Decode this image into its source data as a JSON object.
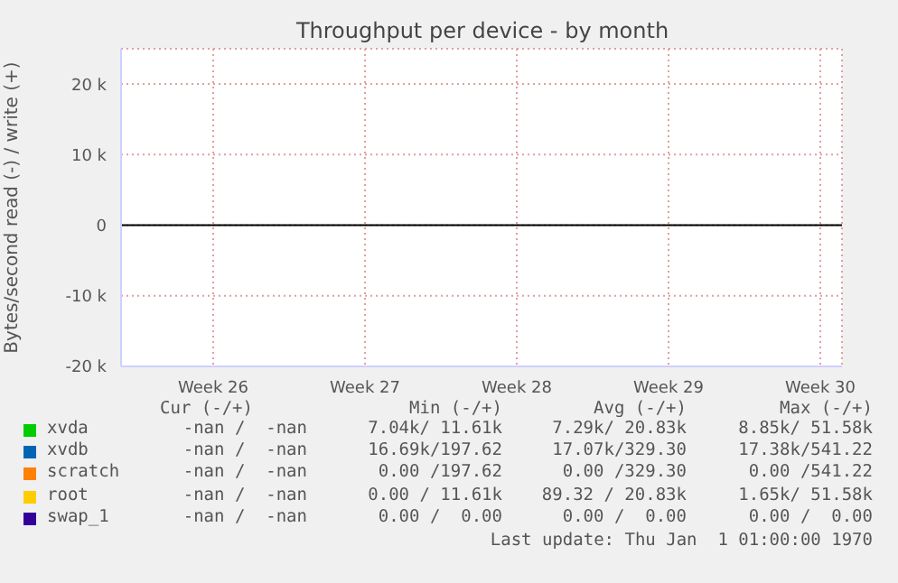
{
  "chart_data": {
    "type": "line",
    "title": "Throughput per device - by month",
    "ylabel": "Bytes/second read (-) / write (+)",
    "categories": [
      "Week 26",
      "Week 27",
      "Week 28",
      "Week 29",
      "Week 30"
    ],
    "ylim": [
      -20000,
      25000
    ],
    "yticks": [
      {
        "value": -20000,
        "label": "-20 k"
      },
      {
        "value": -10000,
        "label": "-10 k"
      },
      0,
      {
        "value": 10000,
        "label": "10 k"
      },
      {
        "value": 20000,
        "label": "20 k"
      }
    ],
    "grid": true,
    "legend": "bottom",
    "ref_lines": [
      {
        "axis": "y",
        "value": 0,
        "color": "#000000"
      }
    ],
    "series": [
      {
        "name": "xvda",
        "color": "#00cc00",
        "values": [
          null,
          null,
          null,
          null,
          null
        ]
      },
      {
        "name": "xvdb",
        "color": "#0066b3",
        "values": [
          null,
          null,
          null,
          null,
          null
        ]
      },
      {
        "name": "scratch",
        "color": "#ff8000",
        "values": [
          null,
          null,
          null,
          null,
          null
        ]
      },
      {
        "name": "root",
        "color": "#ffcc00",
        "values": [
          null,
          null,
          null,
          null,
          null
        ]
      },
      {
        "name": "swap_1",
        "color": "#330099",
        "values": [
          null,
          null,
          null,
          null,
          null
        ]
      }
    ],
    "annotations": [
      "Cur (-/+)",
      "Min (-/+)",
      "Avg (-/+)",
      "Max (-/+)",
      "-nan /  -nan",
      "7.04k/ 11.61k",
      "7.29k/ 20.83k",
      "8.85k/ 51.58k",
      "-nan /  -nan",
      "16.69k/197.62",
      "17.07k/329.30",
      "17.38k/541.22",
      "-nan /  -nan",
      "0.00 /197.62",
      "0.00 /329.30",
      "0.00 /541.22",
      "-nan /  -nan",
      "0.00 / 11.61k",
      "89.32 / 20.83k",
      "1.65k/ 51.58k",
      "-nan /  -nan",
      "0.00 /  0.00",
      "0.00 /  0.00",
      "0.00 /  0.00",
      "Last update: Thu Jan  1 01:00:00 1970"
    ]
  }
}
